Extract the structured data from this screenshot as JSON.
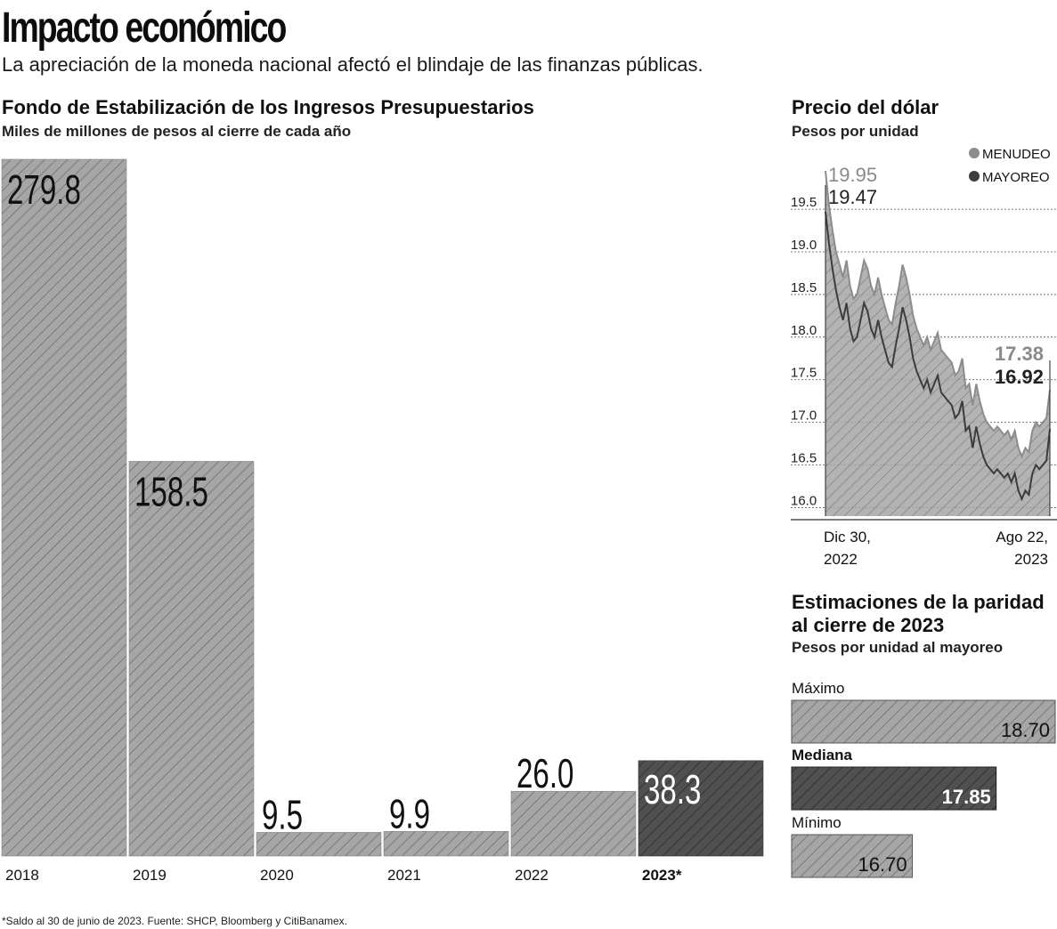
{
  "header": {
    "title": "Impacto económico",
    "subtitle": "La apreciación de la moneda nacional afectó el blindaje de las finanzas públicas."
  },
  "footnote": "*Saldo al 30 de junio de 2023. Fuente: SHCP, Bloomberg y CitiBanamex.",
  "colors": {
    "bar_light": "#a6a6a6",
    "bar_dark": "#505050",
    "hatch": "#6e6e6e",
    "line_menudeo": "#8c8c8c",
    "line_mayoreo": "#3c3c3c"
  },
  "chart_data": [
    {
      "type": "bar",
      "title": "Fondo de Estabilización de los Ingresos Presupuestarios",
      "subtitle": "Miles de millones de pesos al cierre de cada año",
      "categories": [
        "2018",
        "2019",
        "2020",
        "2021",
        "2022",
        "2023*"
      ],
      "values": [
        279.8,
        158.5,
        9.5,
        9.9,
        26.0,
        38.3
      ],
      "labels": [
        "279.8",
        "158.5",
        "9.5",
        "9.9",
        "26.0",
        "38.3"
      ],
      "highlight": "2023*",
      "ylim": [
        0,
        279.8
      ]
    },
    {
      "type": "line",
      "title": "Precio del dólar",
      "subtitle": "Pesos por unidad",
      "x_labels": [
        [
          "Dic 30,",
          "2022"
        ],
        [
          "Ago 22,",
          "2023"
        ]
      ],
      "y_ticks": [
        16.0,
        16.5,
        17.0,
        17.5,
        18.0,
        18.5,
        19.0,
        19.5
      ],
      "y_tick_labels": [
        "16.0",
        "16.5",
        "17.0",
        "17.5",
        "18.0",
        "18.5",
        "19.0",
        "19.5"
      ],
      "ylim": [
        15.9,
        19.95
      ],
      "start_labels": {
        "menudeo": "19.95",
        "mayoreo": "19.47"
      },
      "end_labels": {
        "menudeo": "17.38",
        "mayoreo": "16.92"
      },
      "series": [
        {
          "name": "MENUDEO",
          "values": [
            19.95,
            19.55,
            19.25,
            19.0,
            18.85,
            18.7,
            18.9,
            18.6,
            18.45,
            18.5,
            18.7,
            18.9,
            18.8,
            18.6,
            18.5,
            18.7,
            18.5,
            18.35,
            18.2,
            18.15,
            18.4,
            18.6,
            18.85,
            18.7,
            18.5,
            18.25,
            18.1,
            18.0,
            17.9,
            18.0,
            17.85,
            17.95,
            18.05,
            17.85,
            17.8,
            17.75,
            17.7,
            17.55,
            17.6,
            17.75,
            17.4,
            17.45,
            17.2,
            17.45,
            17.25,
            17.1,
            17.0,
            16.95,
            16.9,
            16.95,
            16.9,
            16.85,
            16.9,
            16.8,
            16.9,
            16.7,
            16.6,
            16.7,
            16.65,
            16.9,
            17.0,
            16.95,
            17.0,
            17.05,
            17.38
          ]
        },
        {
          "name": "MAYOREO",
          "values": [
            19.47,
            19.1,
            18.8,
            18.55,
            18.35,
            18.2,
            18.4,
            18.1,
            17.95,
            18.0,
            18.2,
            18.4,
            18.3,
            18.1,
            18.0,
            18.2,
            18.0,
            17.85,
            17.7,
            17.65,
            17.9,
            18.1,
            18.35,
            18.2,
            18.0,
            17.75,
            17.6,
            17.5,
            17.4,
            17.5,
            17.35,
            17.45,
            17.55,
            17.35,
            17.3,
            17.25,
            17.2,
            17.05,
            17.1,
            17.25,
            16.9,
            16.95,
            16.7,
            16.95,
            16.75,
            16.6,
            16.5,
            16.45,
            16.4,
            16.45,
            16.4,
            16.35,
            16.4,
            16.3,
            16.4,
            16.2,
            16.1,
            16.2,
            16.15,
            16.4,
            16.5,
            16.45,
            16.5,
            16.55,
            16.92
          ]
        }
      ],
      "legend": [
        "MENUDEO",
        "MAYOREO"
      ]
    },
    {
      "type": "bar",
      "orientation": "horizontal",
      "title_lines": [
        "Estimaciones de la paridad",
        "al cierre de 2023"
      ],
      "subtitle": "Pesos por unidad al mayoreo",
      "categories": [
        "Máximo",
        "Mediana",
        "Mínimo"
      ],
      "values": [
        18.7,
        17.85,
        16.7
      ],
      "labels": [
        "18.70",
        "17.85",
        "16.70"
      ],
      "highlight": "Mediana"
    }
  ]
}
